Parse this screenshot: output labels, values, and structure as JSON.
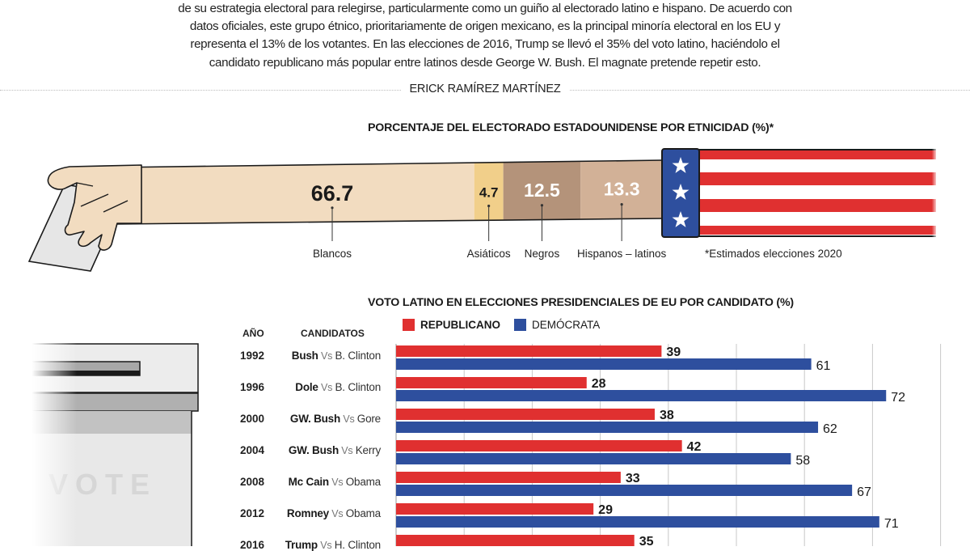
{
  "intro": {
    "lines": [
      "de su estrategia electoral para relegirse, particularmente como un guiño al electorado latino e hispano. De acuerdo con",
      "datos oficiales, este grupo étnico, prioritariamente de origen mexicano, es la principal minoría electoral en los EU y",
      "representa el 13% de los votantes. En las elecciones de 2016, Trump se llevó el 35% del voto latino, haciéndolo el",
      "candidato republicano más popular entre latinos desde George W. Bush. El magnate pretende repetir esto."
    ],
    "byline": "ERICK RAMÍREZ MARTÍNEZ"
  },
  "illustrations": {
    "ballot_box_text": "VOTE",
    "hand_icon": "hand-with-ballot-icon",
    "flag_icon": "us-flag-cuff-icon",
    "star_icon": "star-icon"
  },
  "colors": {
    "republican": "#e03030",
    "democrat": "#2e4f9e",
    "blancos": "#f2dcc0",
    "asiaticos": "#f1cf8a",
    "negros": "#b4937a",
    "hispanos": "#d2b197",
    "flag_blue": "#2e4f9e",
    "flag_red": "#e03030"
  },
  "chart_data": [
    {
      "type": "bar",
      "orientation": "horizontal-stacked",
      "title": "PORCENTAJE DEL ELECTORADO ESTADOUNIDENSE POR ETNICIDAD (%)*",
      "categories": [
        "Blancos",
        "Asiáticos",
        "Negros",
        "Hispanos – latinos"
      ],
      "values": [
        66.7,
        4.7,
        12.5,
        13.3
      ],
      "value_labels": [
        "66.7",
        "4.7",
        "12.5",
        "13.3"
      ],
      "footnote": "*Estimados elecciones 2020"
    },
    {
      "type": "bar",
      "orientation": "horizontal-grouped",
      "title": "VOTO LATINO EN ELECCIONES PRESIDENCIALES DE EU POR CANDIDATO (%)",
      "column_headers": {
        "year": "AÑO",
        "candidates": "CANDIDATOS"
      },
      "categories": [
        "1992",
        "1996",
        "2000",
        "2004",
        "2008",
        "2012",
        "2016"
      ],
      "candidates": [
        {
          "rep": "Bush",
          "vs": "Vs",
          "dem": "B. Clinton"
        },
        {
          "rep": "Dole",
          "vs": "Vs",
          "dem": "B. Clinton"
        },
        {
          "rep": "GW. Bush",
          "vs": "Vs",
          "dem": "Gore"
        },
        {
          "rep": "GW. Bush",
          "vs": "Vs",
          "dem": "Kerry"
        },
        {
          "rep": "Mc Cain",
          "vs": "Vs",
          "dem": "Obama"
        },
        {
          "rep": "Romney",
          "vs": "Vs",
          "dem": "Obama"
        },
        {
          "rep": "Trump",
          "vs": "Vs",
          "dem": "H. Clinton"
        }
      ],
      "series": [
        {
          "name": "REPUBLICANO",
          "values": [
            39,
            28,
            38,
            42,
            33,
            29,
            35
          ]
        },
        {
          "name": "DEMÓCRATA",
          "values": [
            61,
            72,
            62,
            58,
            67,
            71,
            null
          ]
        }
      ],
      "xlim": [
        0,
        80
      ],
      "grid": true,
      "gridline_step": 10,
      "legend_position": "top-left"
    }
  ]
}
